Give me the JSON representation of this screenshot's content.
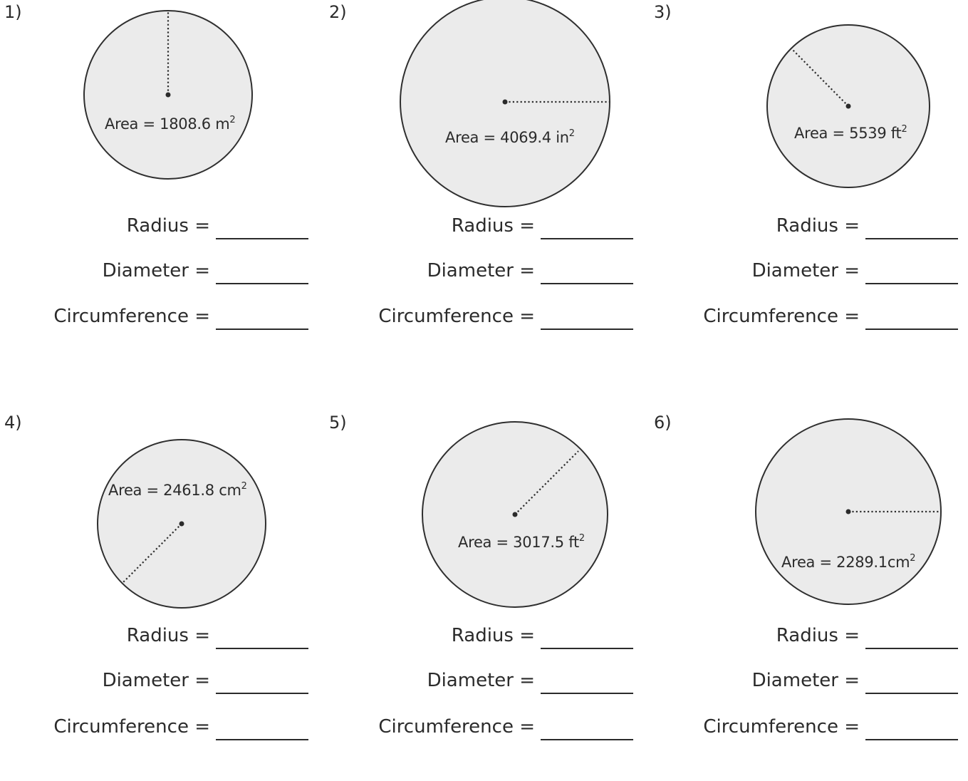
{
  "labels": {
    "radius": "Radius =",
    "diameter": "Diameter =",
    "circumference": "Circumference ="
  },
  "problems": [
    {
      "number": "1)",
      "area_text": "Area = 1808.6 m",
      "area_value": 1808.6,
      "unit_power": "2"
    },
    {
      "number": "2)",
      "area_text": "Area = 4069.4 in",
      "area_value": 4069.4,
      "unit_power": "2"
    },
    {
      "number": "3)",
      "area_text": "Area = 5539 ft",
      "area_value": 5539,
      "unit_power": "2"
    },
    {
      "number": "4)",
      "area_text": "Area = 2461.8 cm",
      "area_value": 2461.8,
      "unit_power": "2"
    },
    {
      "number": "5)",
      "area_text": "Area = 3017.5 ft",
      "area_value": 3017.5,
      "unit_power": "2"
    },
    {
      "number": "6)",
      "area_text": "Area = 2289.1cm",
      "area_value": 2289.1,
      "unit_power": "2"
    }
  ]
}
